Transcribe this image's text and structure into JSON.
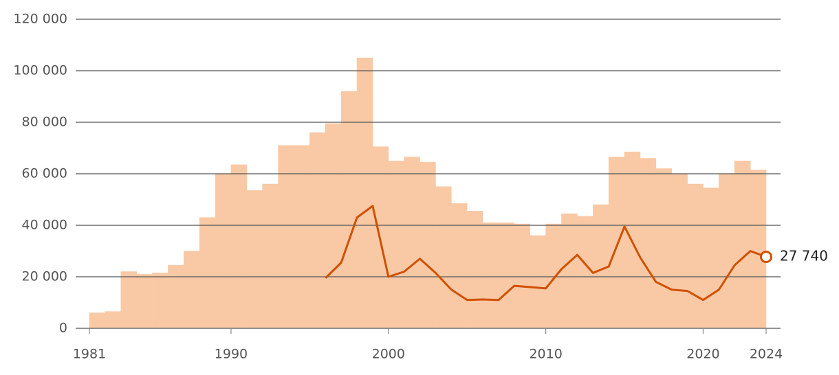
{
  "chart_data": [
    {
      "type": "histogram",
      "bins": [
        1981,
        1982,
        1983,
        1984,
        1985,
        1986,
        1987,
        1988,
        1989,
        1990,
        1991,
        1992,
        1993,
        1994,
        1995,
        1996,
        1997,
        1998,
        1999,
        2000,
        2001,
        2002,
        2003,
        2004,
        2005,
        2006,
        2007,
        2008,
        2009,
        2010,
        2011,
        2012,
        2013,
        2014,
        2015,
        2016,
        2017,
        2018,
        2019,
        2020,
        2021,
        2022,
        2023,
        2024
      ],
      "values": [
        6000,
        6500,
        22000,
        21000,
        21500,
        24500,
        30000,
        43000,
        60000,
        63500,
        53500,
        56000,
        71000,
        71000,
        76000,
        79500,
        92000,
        105000,
        70500,
        65000,
        66500,
        64500,
        55000,
        48500,
        45500,
        41000,
        41000,
        40500,
        36000,
        40500,
        44500,
        43500,
        48000,
        66500,
        68500,
        66000,
        62000,
        60000,
        56000,
        54500,
        60000,
        65000,
        61500
      ],
      "color": "#f9c9a5",
      "xlim": [
        1981,
        2024
      ],
      "xticks": [
        1981,
        1990,
        2000,
        2010,
        2020,
        2024
      ],
      "ylim": [
        0,
        120000
      ],
      "yticks": [
        0,
        {
          "value": 20000,
          "label": "20 000"
        },
        {
          "value": 40000,
          "label": "40 000"
        },
        {
          "value": 60000,
          "label": "60 000"
        },
        {
          "value": 80000,
          "label": "80 000"
        },
        {
          "value": 100000,
          "label": "100 000"
        },
        {
          "value": 120000,
          "label": "120 000"
        }
      ],
      "grid": true
    },
    {
      "type": "line",
      "x": [
        1996,
        1997,
        1998,
        1999,
        2000,
        2001,
        2002,
        2003,
        2004,
        2005,
        2006,
        2007,
        2008,
        2009,
        2010,
        2011,
        2012,
        2013,
        2014,
        2015,
        2016,
        2017,
        2018,
        2019,
        2020,
        2021,
        2022,
        2023,
        2024
      ],
      "values": [
        19500,
        25500,
        43000,
        47500,
        20000,
        22000,
        27000,
        21500,
        15000,
        11000,
        11200,
        11000,
        16500,
        16000,
        15500,
        23000,
        28500,
        21500,
        24000,
        39500,
        27500,
        18000,
        15000,
        14500,
        11000,
        15000,
        24500,
        30000,
        27740
      ],
      "value_labels": [
        null,
        null,
        null,
        null,
        null,
        null,
        null,
        null,
        null,
        null,
        null,
        null,
        null,
        null,
        null,
        null,
        null,
        null,
        null,
        null,
        null,
        null,
        null,
        null,
        null,
        null,
        null,
        null,
        "27 740"
      ],
      "color": "#d05000"
    }
  ]
}
